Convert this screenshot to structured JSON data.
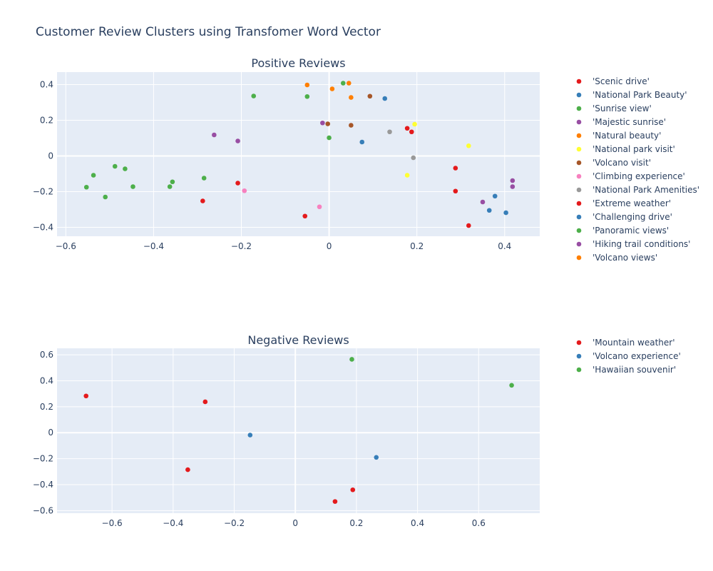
{
  "title": "Customer Review Clusters using Transfomer Word Vector",
  "colors": {
    "plot_bg": "#e5ecf6",
    "grid": "#ffffff",
    "text": "#2a3f5f"
  },
  "chart_data": [
    {
      "type": "scatter",
      "title": "Positive Reviews",
      "xlim": [
        -0.62,
        0.48
      ],
      "ylim": [
        -0.45,
        0.47
      ],
      "xticks": [
        -0.6,
        -0.4,
        -0.2,
        0,
        0.2,
        0.4
      ],
      "xtick_labels": [
        "−0.6",
        "−0.4",
        "−0.2",
        "0",
        "0.2",
        "0.4"
      ],
      "yticks": [
        -0.4,
        -0.2,
        0,
        0.2,
        0.4
      ],
      "ytick_labels": [
        "−0.4",
        "−0.2",
        "0",
        "0.2",
        "0.4"
      ],
      "grid": true,
      "legend": "right",
      "series": [
        {
          "name": "'Scenic drive'",
          "color": "#e41a1c",
          "points": [
            [
              -0.208,
              -0.152
            ],
            [
              0.178,
              0.155
            ],
            [
              0.188,
              0.135
            ],
            [
              0.288,
              -0.068
            ]
          ]
        },
        {
          "name": "'National Park Beauty'",
          "color": "#377eb8",
          "points": [
            [
              0.127,
              0.322
            ],
            [
              0.075,
              0.078
            ]
          ]
        },
        {
          "name": "'Sunrise view'",
          "color": "#4daf4a",
          "points": [
            [
              -0.172,
              0.336
            ],
            [
              -0.05,
              0.333
            ],
            [
              0,
              0.102
            ],
            [
              0.032,
              0.408
            ],
            [
              -0.285,
              -0.124
            ]
          ]
        },
        {
          "name": "'Majestic sunrise'",
          "color": "#984ea3",
          "points": [
            [
              -0.262,
              0.118
            ],
            [
              -0.208,
              0.084
            ],
            [
              -0.015,
              0.185
            ],
            [
              0.418,
              -0.138
            ],
            [
              0.418,
              -0.172
            ]
          ]
        },
        {
          "name": "'Natural beauty'",
          "color": "#ff7f00",
          "points": [
            [
              -0.05,
              0.398
            ],
            [
              0.007,
              0.376
            ],
            [
              0.045,
              0.408
            ],
            [
              0.05,
              0.328
            ]
          ]
        },
        {
          "name": "'National park visit'",
          "color": "#ffff33",
          "points": [
            [
              0.195,
              0.178
            ],
            [
              0.318,
              0.057
            ],
            [
              0.178,
              -0.108
            ]
          ]
        },
        {
          "name": "'Volcano visit'",
          "color": "#a65628",
          "points": [
            [
              -0.003,
              0.18
            ],
            [
              0.05,
              0.172
            ],
            [
              0.093,
              0.335
            ]
          ]
        },
        {
          "name": "'Climbing experience'",
          "color": "#f781bf",
          "points": [
            [
              -0.193,
              -0.195
            ],
            [
              -0.022,
              -0.285
            ]
          ]
        },
        {
          "name": "'National Park Amenities'",
          "color": "#999999",
          "points": [
            [
              0.138,
              0.135
            ],
            [
              0.192,
              -0.01
            ]
          ]
        },
        {
          "name": "'Extreme weather'",
          "color": "#e41a1c",
          "points": [
            [
              -0.288,
              -0.252
            ],
            [
              -0.055,
              -0.337
            ],
            [
              0.288,
              -0.197
            ],
            [
              0.318,
              -0.39
            ]
          ]
        },
        {
          "name": "'Challenging drive'",
          "color": "#377eb8",
          "points": [
            [
              0.378,
              -0.225
            ],
            [
              0.365,
              -0.305
            ],
            [
              0.403,
              -0.318
            ]
          ]
        },
        {
          "name": "'Panoramic views'",
          "color": "#4daf4a",
          "points": [
            [
              -0.553,
              -0.175
            ],
            [
              -0.537,
              -0.108
            ],
            [
              -0.51,
              -0.23
            ],
            [
              -0.488,
              -0.058
            ],
            [
              -0.465,
              -0.072
            ],
            [
              -0.447,
              -0.172
            ],
            [
              -0.363,
              -0.172
            ],
            [
              -0.357,
              -0.145
            ]
          ]
        },
        {
          "name": "'Hiking trail conditions'",
          "color": "#984ea3",
          "points": [
            [
              0.35,
              -0.258
            ]
          ]
        },
        {
          "name": "'Volcano views'",
          "color": "#ff7f00",
          "points": []
        }
      ]
    },
    {
      "type": "scatter",
      "title": "Negative Reviews",
      "xlim": [
        -0.78,
        0.8
      ],
      "ylim": [
        -0.62,
        0.65
      ],
      "xticks": [
        -0.6,
        -0.4,
        -0.2,
        0,
        0.2,
        0.4,
        0.6
      ],
      "xtick_labels": [
        "−0.6",
        "−0.4",
        "−0.2",
        "0",
        "0.2",
        "0.4",
        "0.6"
      ],
      "yticks": [
        -0.6,
        -0.4,
        -0.2,
        0,
        0.2,
        0.4,
        0.6
      ],
      "ytick_labels": [
        "−0.6",
        "−0.4",
        "−0.2",
        "0",
        "0.2",
        "0.4",
        "0.6"
      ],
      "grid": true,
      "legend": "right",
      "series": [
        {
          "name": "'Mountain weather'",
          "color": "#e41a1c",
          "points": [
            [
              -0.685,
              0.283
            ],
            [
              -0.295,
              0.238
            ],
            [
              -0.352,
              -0.285
            ],
            [
              0.188,
              -0.44
            ],
            [
              0.13,
              -0.53
            ]
          ]
        },
        {
          "name": "'Volcano experience'",
          "color": "#377eb8",
          "points": [
            [
              -0.148,
              -0.018
            ],
            [
              0.265,
              -0.19
            ]
          ]
        },
        {
          "name": "'Hawaiian souvenir'",
          "color": "#4daf4a",
          "points": [
            [
              0.185,
              0.565
            ],
            [
              0.708,
              0.365
            ]
          ]
        }
      ]
    }
  ]
}
